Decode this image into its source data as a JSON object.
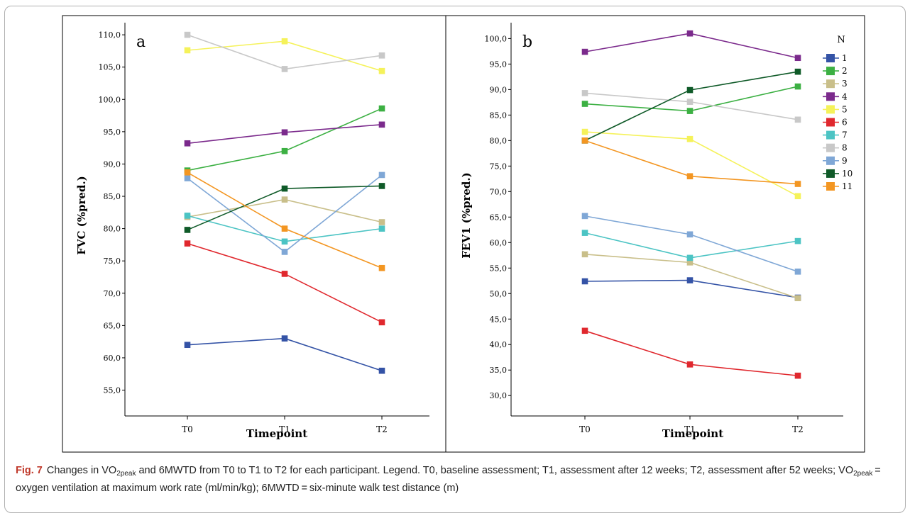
{
  "chart_data": [
    {
      "type": "line",
      "panel_label": "a",
      "ylabel": "FVC (%pred.)",
      "xlabel": "Timepoint",
      "categories": [
        "T0",
        "T1",
        "T2"
      ],
      "ylim": [
        51.0,
        111.0
      ],
      "yticks": [
        "55,0",
        "60,0",
        "65,0",
        "70,0",
        "75,0",
        "80,0",
        "85,0",
        "90,0",
        "95,0",
        "100,0",
        "105,0",
        "110,0"
      ],
      "ytick_values": [
        55,
        60,
        65,
        70,
        75,
        80,
        85,
        90,
        95,
        100,
        105,
        110
      ],
      "series": [
        {
          "name": "1",
          "color": "#3453a6",
          "values": [
            62.0,
            63.0,
            58.0
          ]
        },
        {
          "name": "2",
          "color": "#3cb043",
          "values": [
            89.0,
            92.0,
            98.6
          ]
        },
        {
          "name": "3",
          "color": "#c9bf8a",
          "values": [
            81.8,
            84.5,
            81.0
          ]
        },
        {
          "name": "4",
          "color": "#7b2a8c",
          "values": [
            93.2,
            94.9,
            96.1
          ]
        },
        {
          "name": "5",
          "color": "#f5f25a",
          "values": [
            107.6,
            109.0,
            104.4
          ]
        },
        {
          "name": "6",
          "color": "#e0282e",
          "values": [
            77.7,
            73.0,
            65.5
          ]
        },
        {
          "name": "7",
          "color": "#4cc4c4",
          "values": [
            82.0,
            78.0,
            80.0
          ]
        },
        {
          "name": "8",
          "color": "#c8c8c8",
          "values": [
            110.0,
            104.7,
            106.8
          ]
        },
        {
          "name": "9",
          "color": "#7fa7d6",
          "values": [
            87.8,
            76.4,
            88.3
          ]
        },
        {
          "name": "10",
          "color": "#0f5a28",
          "values": [
            79.8,
            86.2,
            86.6
          ]
        },
        {
          "name": "11",
          "color": "#f39622",
          "values": [
            88.7,
            80.0,
            73.9
          ]
        }
      ]
    },
    {
      "type": "line",
      "panel_label": "b",
      "ylabel": "FEV1 (%pred.)",
      "xlabel": "Timepoint",
      "categories": [
        "T0",
        "T1",
        "T2"
      ],
      "ylim": [
        26.0,
        102.0
      ],
      "yticks": [
        "30,0",
        "35,0",
        "40,0",
        "45,0",
        "50,0",
        "55,0",
        "60,0",
        "65,0",
        "70,0",
        "75,0",
        "80,0",
        "85,0",
        "90,0",
        "95,0",
        "100,0"
      ],
      "ytick_values": [
        30,
        35,
        40,
        45,
        50,
        55,
        60,
        65,
        70,
        75,
        80,
        85,
        90,
        95,
        100
      ],
      "legend_title": "N",
      "legend_position": "right",
      "series": [
        {
          "name": "1",
          "color": "#3453a6",
          "values": [
            52.4,
            52.6,
            49.2
          ]
        },
        {
          "name": "2",
          "color": "#3cb043",
          "values": [
            87.2,
            85.8,
            90.6
          ]
        },
        {
          "name": "3",
          "color": "#c9bf8a",
          "values": [
            57.7,
            56.1,
            49.1
          ]
        },
        {
          "name": "4",
          "color": "#7b2a8c",
          "values": [
            97.4,
            101.0,
            96.2
          ]
        },
        {
          "name": "5",
          "color": "#f5f25a",
          "values": [
            81.7,
            80.3,
            69.1
          ]
        },
        {
          "name": "6",
          "color": "#e0282e",
          "values": [
            42.7,
            36.1,
            33.9
          ]
        },
        {
          "name": "7",
          "color": "#4cc4c4",
          "values": [
            61.9,
            57.0,
            60.3
          ]
        },
        {
          "name": "8",
          "color": "#c8c8c8",
          "values": [
            89.3,
            87.6,
            84.1
          ]
        },
        {
          "name": "9",
          "color": "#7fa7d6",
          "values": [
            65.2,
            61.6,
            54.3
          ]
        },
        {
          "name": "10",
          "color": "#0f5a28",
          "values": [
            80.0,
            89.9,
            93.5
          ]
        },
        {
          "name": "11",
          "color": "#f39622",
          "values": [
            80.0,
            73.0,
            71.5
          ]
        }
      ]
    }
  ],
  "caption": {
    "fig_label": "Fig. 7",
    "text_1": "Changes in VO",
    "sub_1": "2peak",
    "text_2": " and 6MWTD from T0 to T1 to T2 for each participant. Legend. T0, baseline assessment; T1, assessment after 12 weeks; T2, assessment after 52 weeks; VO",
    "sub_2": "2peak",
    "text_3": " = oxygen ventilation at maximum work rate (ml/min/kg); 6MWTD = six-minute walk test distance (m)"
  }
}
